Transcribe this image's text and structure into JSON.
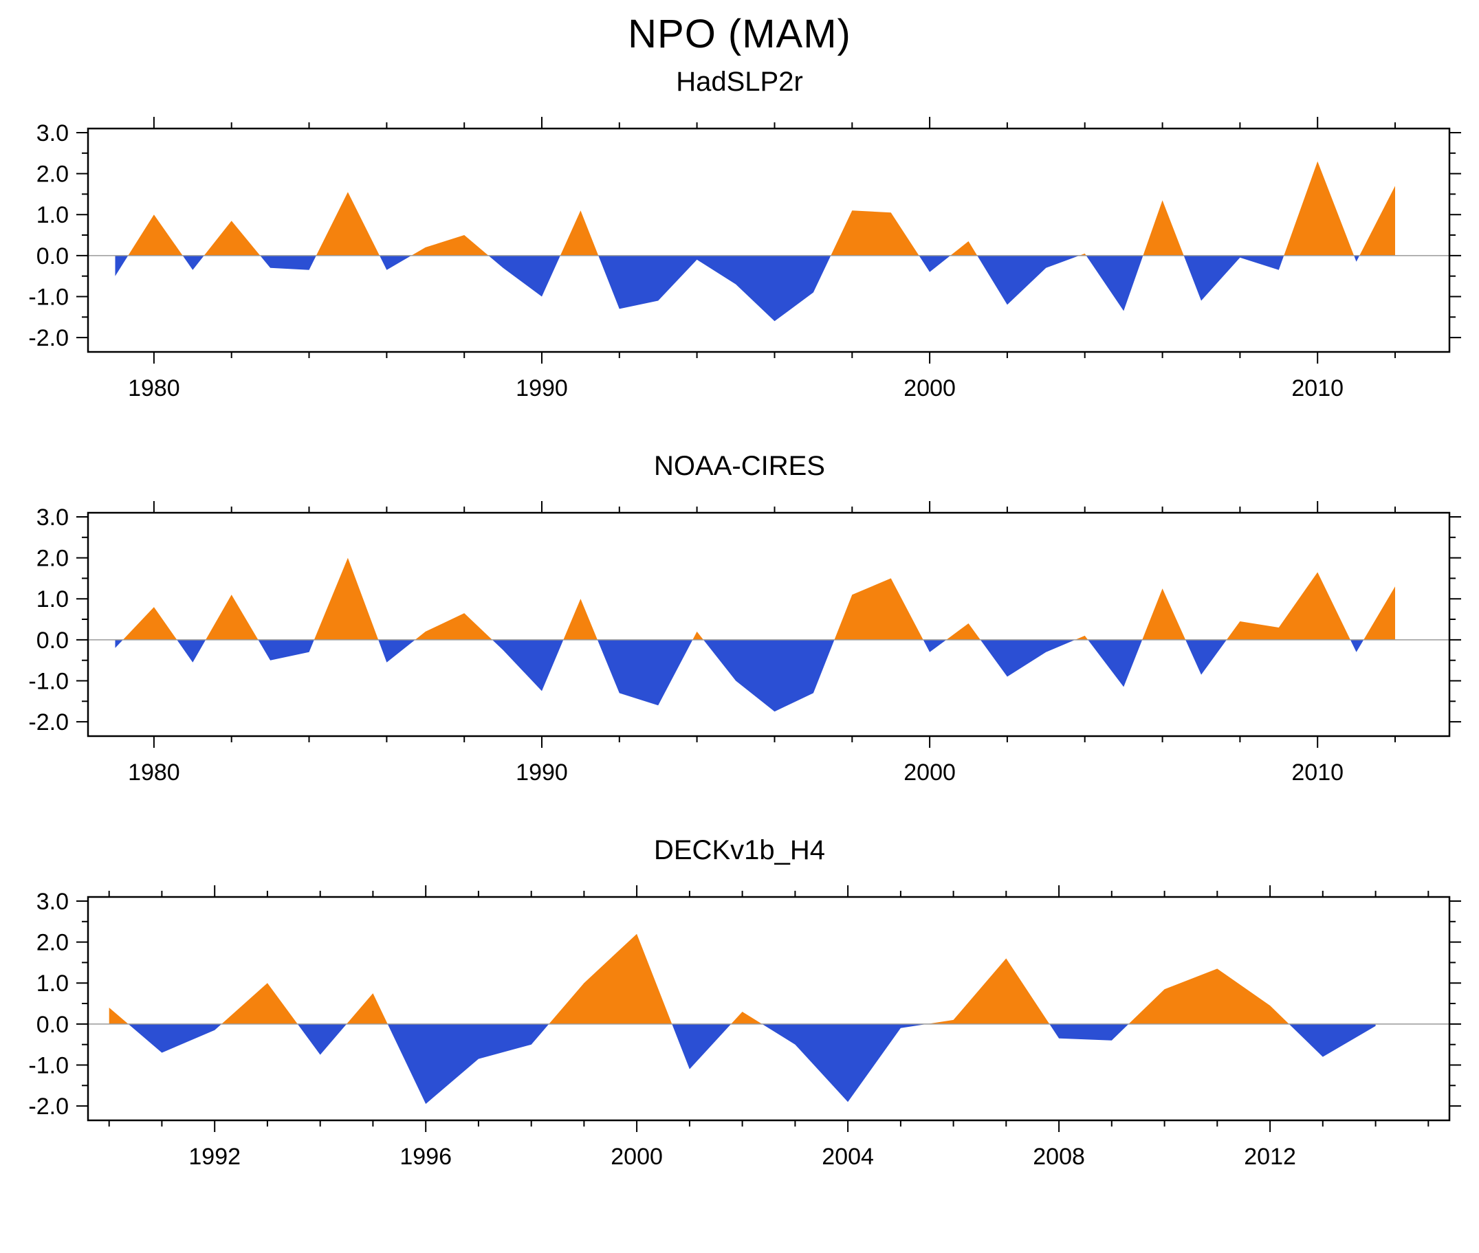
{
  "title": "NPO (MAM)",
  "colors": {
    "positive": "#F5820D",
    "negative": "#2B4FD4",
    "axis": "#000000",
    "zero_line": "#9A9A9A",
    "background": "#FFFFFF"
  },
  "chart_data": [
    {
      "type": "area",
      "title": "HadSLP2r",
      "xlabel": "",
      "ylabel": "",
      "grid": false,
      "legend": "none",
      "xlim": [
        1978.3,
        2013.4
      ],
      "ylim": [
        -2.35,
        3.1
      ],
      "x_major_ticks": [
        1980,
        1990,
        2000,
        2010
      ],
      "x_tick_labels": [
        "1980",
        "1990",
        "2000",
        "2010"
      ],
      "x_minor_step": 2,
      "y_major_ticks": [
        3.0,
        2.0,
        1.0,
        0.0,
        -1.0,
        -2.0
      ],
      "y_tick_labels": [
        "3.0",
        "2.0",
        "1.0",
        "0.0",
        "-1.0",
        "-2.0"
      ],
      "y_minor_step": 0.5,
      "x": [
        1979,
        1980,
        1981,
        1982,
        1983,
        1984,
        1985,
        1986,
        1987,
        1988,
        1989,
        1990,
        1991,
        1992,
        1993,
        1994,
        1995,
        1996,
        1997,
        1998,
        1999,
        2000,
        2001,
        2002,
        2003,
        2004,
        2005,
        2006,
        2007,
        2008,
        2009,
        2010,
        2011,
        2012
      ],
      "values": [
        -0.5,
        1.0,
        -0.35,
        0.85,
        -0.3,
        -0.35,
        1.55,
        -0.35,
        0.2,
        0.5,
        -0.3,
        -1.0,
        1.1,
        -1.3,
        -1.1,
        -0.1,
        -0.7,
        -1.6,
        -0.9,
        1.1,
        1.05,
        -0.4,
        0.35,
        -1.2,
        -0.3,
        0.05,
        -1.35,
        1.35,
        -1.1,
        -0.05,
        -0.35,
        2.3,
        -0.15,
        1.7
      ]
    },
    {
      "type": "area",
      "title": "NOAA-CIRES",
      "xlabel": "",
      "ylabel": "",
      "grid": false,
      "legend": "none",
      "xlim": [
        1978.3,
        2013.4
      ],
      "ylim": [
        -2.35,
        3.1
      ],
      "x_major_ticks": [
        1980,
        1990,
        2000,
        2010
      ],
      "x_tick_labels": [
        "1980",
        "1990",
        "2000",
        "2010"
      ],
      "x_minor_step": 2,
      "y_major_ticks": [
        3.0,
        2.0,
        1.0,
        0.0,
        -1.0,
        -2.0
      ],
      "y_tick_labels": [
        "3.0",
        "2.0",
        "1.0",
        "0.0",
        "-1.0",
        "-2.0"
      ],
      "y_minor_step": 0.5,
      "x": [
        1979,
        1980,
        1981,
        1982,
        1983,
        1984,
        1985,
        1986,
        1987,
        1988,
        1989,
        1990,
        1991,
        1992,
        1993,
        1994,
        1995,
        1996,
        1997,
        1998,
        1999,
        2000,
        2001,
        2002,
        2003,
        2004,
        2005,
        2006,
        2007,
        2008,
        2009,
        2010,
        2011,
        2012
      ],
      "values": [
        -0.2,
        0.8,
        -0.55,
        1.1,
        -0.5,
        -0.3,
        2.0,
        -0.55,
        0.2,
        0.65,
        -0.25,
        -1.25,
        1.0,
        -1.3,
        -1.6,
        0.2,
        -1.0,
        -1.75,
        -1.3,
        1.1,
        1.5,
        -0.3,
        0.4,
        -0.9,
        -0.3,
        0.1,
        -1.15,
        1.25,
        -0.85,
        0.45,
        0.3,
        1.65,
        -0.3,
        1.3
      ]
    },
    {
      "type": "area",
      "title": "DECKv1b_H4",
      "xlabel": "",
      "ylabel": "",
      "grid": false,
      "legend": "none",
      "xlim": [
        1989.6,
        2015.4
      ],
      "ylim": [
        -2.35,
        3.1
      ],
      "x_major_ticks": [
        1992,
        1996,
        2000,
        2004,
        2008,
        2012
      ],
      "x_tick_labels": [
        "1992",
        "1996",
        "2000",
        "2004",
        "2008",
        "2012"
      ],
      "x_minor_step": 1,
      "y_major_ticks": [
        3.0,
        2.0,
        1.0,
        0.0,
        -1.0,
        -2.0
      ],
      "y_tick_labels": [
        "3.0",
        "2.0",
        "1.0",
        "0.0",
        "-1.0",
        "-2.0"
      ],
      "y_minor_step": 0.5,
      "x": [
        1990,
        1991,
        1992,
        1993,
        1994,
        1995,
        1996,
        1997,
        1998,
        1999,
        2000,
        2001,
        2002,
        2003,
        2004,
        2005,
        2006,
        2007,
        2008,
        2009,
        2010,
        2011,
        2012,
        2013,
        2014
      ],
      "values": [
        0.4,
        -0.7,
        -0.15,
        1.0,
        -0.75,
        0.75,
        -1.95,
        -0.85,
        -0.5,
        1.0,
        2.2,
        -1.1,
        0.3,
        -0.5,
        -1.9,
        -0.1,
        0.1,
        1.6,
        -0.35,
        -0.4,
        0.85,
        1.35,
        0.45,
        -0.8,
        -0.05
      ]
    }
  ]
}
